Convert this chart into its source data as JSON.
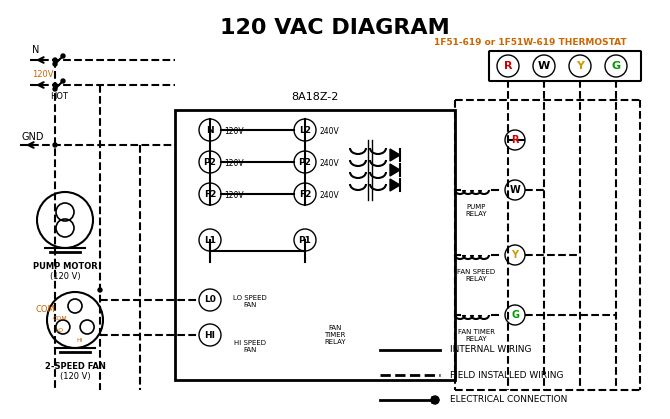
{
  "title": "120 VAC DIAGRAM",
  "title_fontsize": 16,
  "title_bold": true,
  "bg_color": "#ffffff",
  "line_color": "#000000",
  "orange_color": "#cc6600",
  "thermostat_label": "1F51-619 or 1F51W-619 THERMOSTAT",
  "control_box_label": "8A18Z-2",
  "legend_items": [
    {
      "label": "INTERNAL WIRING",
      "style": "solid"
    },
    {
      "label": "FIELD INSTALLED WIRING",
      "style": "dashed"
    },
    {
      "label": "ELECTRICAL CONNECTION",
      "style": "arrow"
    }
  ]
}
